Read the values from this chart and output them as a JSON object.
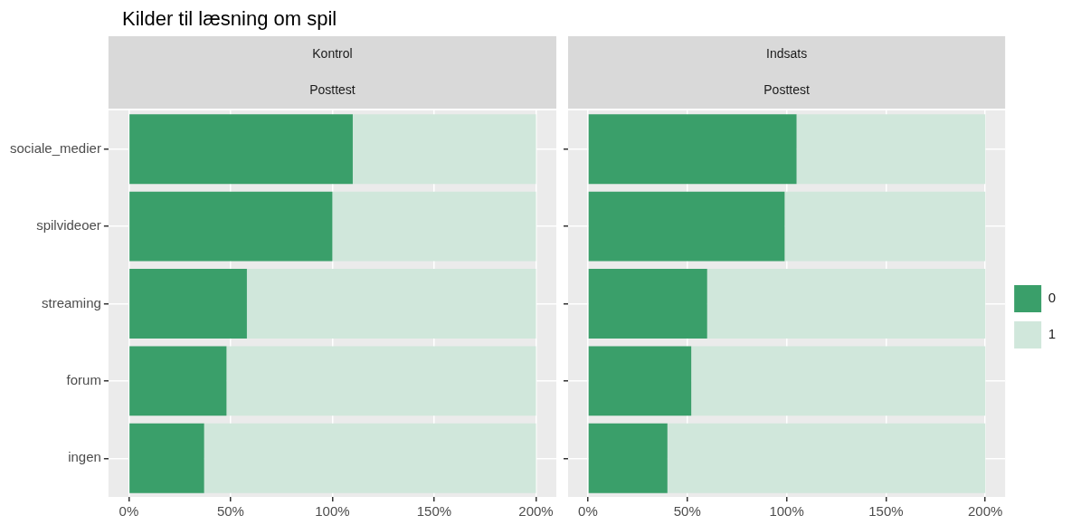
{
  "chart_data": [
    {
      "type": "bar",
      "title": "Kilder til læsning om spil",
      "annotations": [
        "Kontrol",
        "Posttest"
      ],
      "orientation": "horizontal",
      "stacked": true,
      "categories": [
        "sociale_medier",
        "spilvideoer",
        "streaming",
        "forum",
        "ingen"
      ],
      "series": [
        {
          "color": "#3a9f6a",
          "values": [
            110,
            100,
            58,
            48,
            37
          ]
        },
        {
          "color": "#d0e7db",
          "values": [
            90,
            100,
            142,
            152,
            163
          ]
        }
      ],
      "xlim": [
        -10,
        210
      ],
      "xticks": [
        {
          "value": 0,
          "label": "0%"
        },
        {
          "value": 50,
          "label": "50%"
        },
        {
          "value": 100,
          "label": "100%"
        },
        {
          "value": 150,
          "label": "150%"
        },
        {
          "value": 200,
          "label": "200%"
        }
      ],
      "grid": true,
      "legend": false
    },
    {
      "type": "bar",
      "annotations": [
        "Indsats",
        "Posttest"
      ],
      "orientation": "horizontal",
      "stacked": true,
      "categories": [
        null,
        null,
        null,
        null,
        null
      ],
      "series": [
        {
          "name": "0",
          "color": "#3a9f6a",
          "values": [
            105,
            99,
            60,
            52,
            40
          ]
        },
        {
          "name": "1",
          "color": "#d0e7db",
          "values": [
            95,
            101,
            140,
            148,
            160
          ]
        }
      ],
      "xlim": [
        -10,
        210
      ],
      "xticks": [
        {
          "value": 0,
          "label": "0%"
        },
        {
          "value": 50,
          "label": "50%"
        },
        {
          "value": 100,
          "label": "100%"
        },
        {
          "value": 150,
          "label": "150%"
        },
        {
          "value": 200,
          "label": "200%"
        }
      ],
      "grid": true,
      "legend": "right",
      "tick_labels": "x"
    }
  ]
}
